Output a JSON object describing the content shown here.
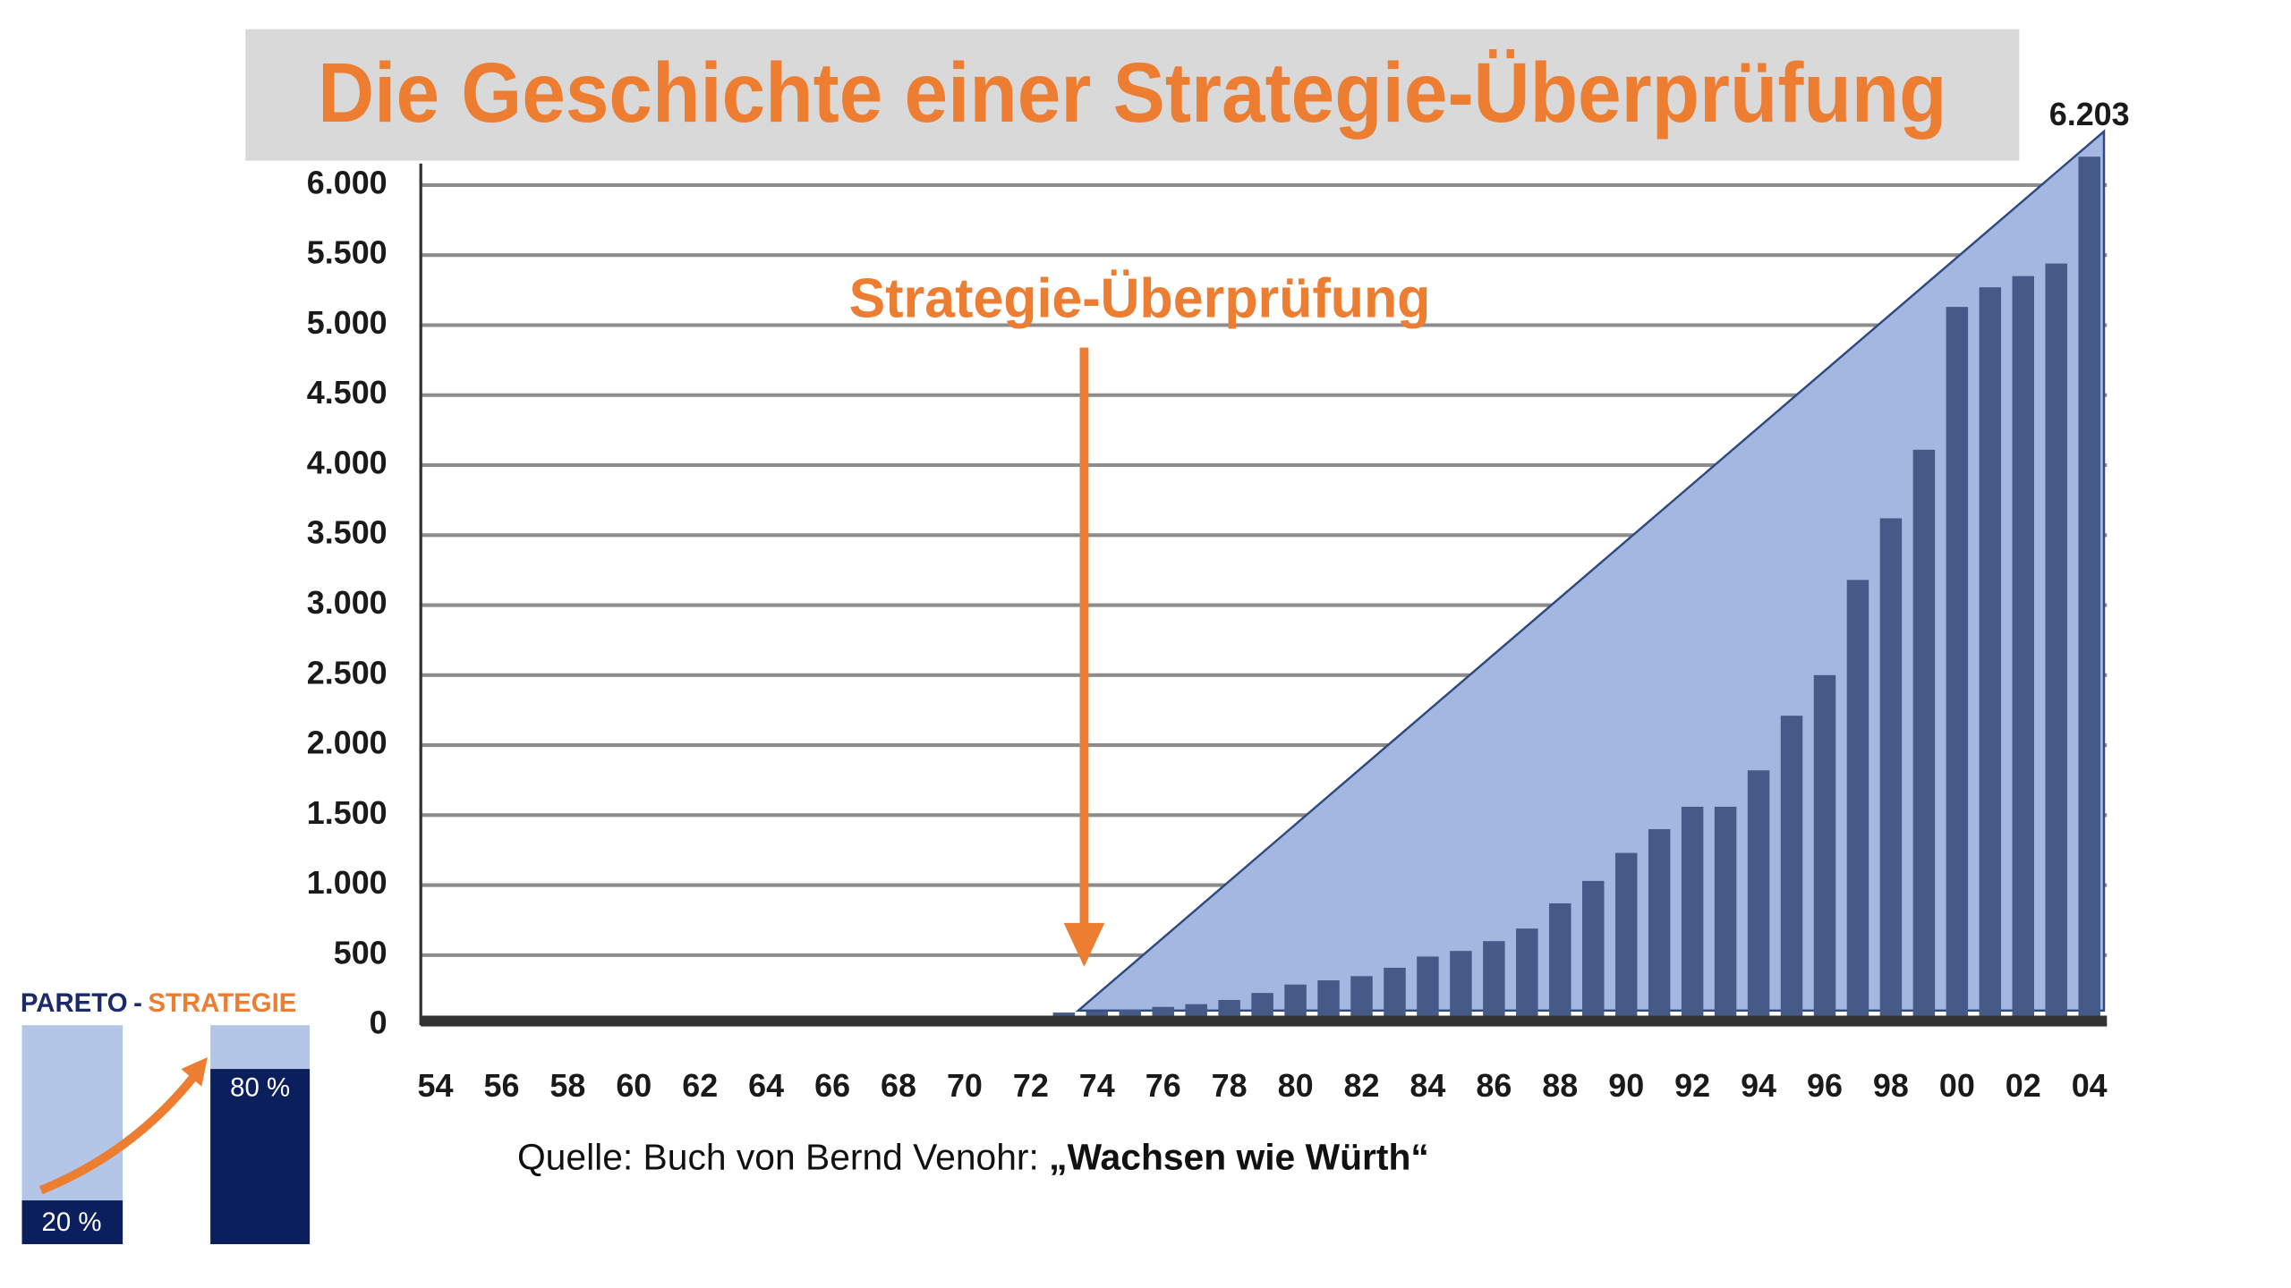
{
  "chart_data": {
    "type": "bar",
    "title": "Die Geschichte einer Strategie-Überprüfung",
    "annotation": "Strategie-Überprüfung",
    "source": {
      "text": "Quelle: Buch von Bernd Venohr: ",
      "emphasis": "„Wachsen wie Würth“"
    },
    "categories": [
      "54",
      null,
      "56",
      null,
      "58",
      null,
      "60",
      null,
      "62",
      null,
      "64",
      null,
      "66",
      null,
      "68",
      null,
      "70",
      null,
      "72",
      null,
      "74",
      null,
      "76",
      null,
      "78",
      null,
      "80",
      null,
      "82",
      null,
      "84",
      null,
      "86",
      null,
      "88",
      null,
      "90",
      null,
      "92",
      null,
      "94",
      null,
      "96",
      null,
      "98",
      null,
      "00",
      null,
      "02",
      null,
      "04"
    ],
    "values": [
      0,
      0,
      0,
      0,
      0,
      0,
      0,
      0,
      0,
      0,
      0,
      0,
      15,
      20,
      20,
      25,
      35,
      40,
      50,
      90,
      100,
      110,
      130,
      150,
      180,
      230,
      290,
      320,
      350,
      410,
      490,
      530,
      600,
      690,
      870,
      1030,
      1230,
      1400,
      1560,
      1560,
      1820,
      2210,
      2500,
      3180,
      3620,
      4110,
      5130,
      5270,
      5350,
      5440,
      6203
    ],
    "value_labels": [
      null,
      null,
      null,
      null,
      null,
      null,
      null,
      null,
      null,
      null,
      null,
      null,
      null,
      null,
      null,
      null,
      null,
      null,
      null,
      null,
      null,
      null,
      null,
      null,
      null,
      null,
      null,
      null,
      null,
      null,
      null,
      null,
      null,
      null,
      null,
      null,
      null,
      null,
      null,
      null,
      null,
      null,
      null,
      null,
      null,
      null,
      null,
      null,
      null,
      null,
      "6.203"
    ],
    "color": "#455a86",
    "ylim": [
      0,
      6300
    ],
    "yticks": [
      0,
      500,
      {
        "value": 1000,
        "label": "1.000"
      },
      {
        "value": 1500,
        "label": "1.500"
      },
      {
        "value": 2000,
        "label": "2.000"
      },
      {
        "value": 2500,
        "label": "2.500"
      },
      {
        "value": 3000,
        "label": "3.000"
      },
      {
        "value": 3500,
        "label": "3.500"
      },
      {
        "value": 4000,
        "label": "4.000"
      },
      {
        "value": 4500,
        "label": "4.500"
      },
      {
        "value": 5000,
        "label": "5.000"
      },
      {
        "value": 5500,
        "label": "5.500"
      },
      {
        "value": 6000,
        "label": "6.000"
      }
    ],
    "grid": true
  },
  "pareto": {
    "left": "PARETO",
    "dash": "-",
    "right": "STRATEGIE",
    "low": "20 %",
    "high": "80 %"
  }
}
